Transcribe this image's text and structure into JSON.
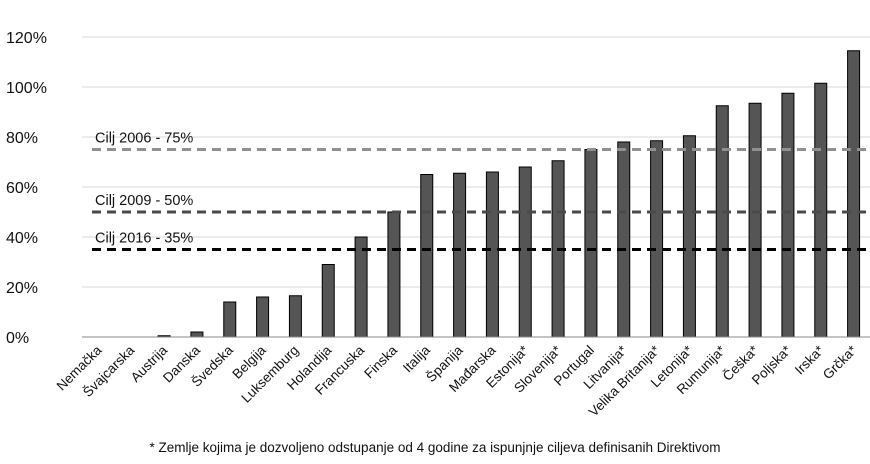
{
  "chart_data": {
    "type": "bar",
    "title": "",
    "xlabel": "",
    "ylabel": "",
    "ylim": [
      0,
      120
    ],
    "yticks": [
      0,
      20,
      40,
      60,
      80,
      100,
      120
    ],
    "ytick_labels": [
      "0%",
      "20%",
      "40%",
      "60%",
      "80%",
      "100%",
      "120%"
    ],
    "grid": true,
    "bar_color": "#555555",
    "categories": [
      "Nemačka",
      "Švajcarska",
      "Austrija",
      "Danska",
      "Švedska",
      "Belgija",
      "Luksemburg",
      "Holandija",
      "Francuska",
      "Finska",
      "Italija",
      "Španija",
      "Mađarska",
      "Estonija*",
      "Slovenija*",
      "Portugal",
      "Litvanija*",
      "Velika Britanija*",
      "Letonija*",
      "Rumunija*",
      "Češka*",
      "Poljska*",
      "Irska*",
      "Grčka*"
    ],
    "values": [
      0,
      0,
      0.5,
      2,
      14,
      16,
      16.5,
      29,
      40,
      50,
      65,
      65.5,
      66,
      68,
      70.5,
      75,
      78,
      78.5,
      80.5,
      92.5,
      93.5,
      97.5,
      101.5,
      114.5
    ],
    "reference_lines": [
      {
        "label": "Cilj 2006 - 75%",
        "value": 75,
        "color": "#909090"
      },
      {
        "label": "Cilj 2009 - 50%",
        "value": 50,
        "color": "#4a4a4a"
      },
      {
        "label": "Cilj 2016 - 35%",
        "value": 35,
        "color": "#000000"
      }
    ]
  },
  "footnote": "* Zemlje kojima je dozvoljeno odstupanje od 4 godine za ispunjnje ciljeva definisanih Direktivom"
}
